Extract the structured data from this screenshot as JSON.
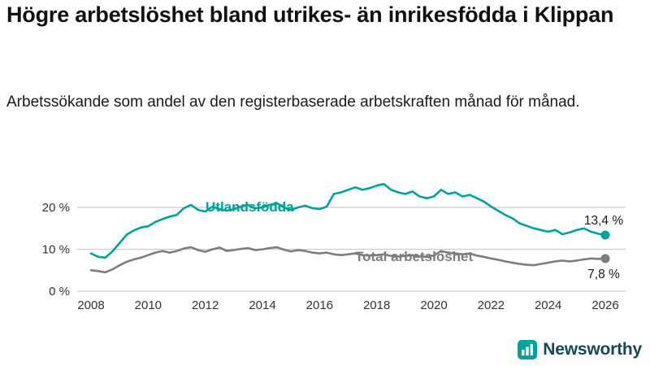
{
  "header": {
    "title": "Högre arbetslöshet bland utrikes- än inrikesfödda i Klippan",
    "subtitle": "Arbetssökande som andel av den registerbaserade arbetskraften månad för månad."
  },
  "chart_data": {
    "type": "line",
    "title": "",
    "xlabel": "",
    "ylabel": "",
    "grid": true,
    "legend_position": "inline",
    "xlim": [
      2007.5,
      2026.7
    ],
    "ylim": [
      0,
      28.5
    ],
    "ytick_values": [
      0,
      10,
      20
    ],
    "ytick_labels": [
      "0 %",
      "10 %",
      "20 %"
    ],
    "xtick_values": [
      2008,
      2010,
      2012,
      2014,
      2016,
      2018,
      2020,
      2022,
      2024,
      2026
    ],
    "xtick_labels": [
      "2008",
      "2010",
      "2012",
      "2014",
      "2016",
      "2018",
      "2020",
      "2022",
      "2024",
      "2026"
    ],
    "x": [
      2008,
      2008.25,
      2008.5,
      2008.75,
      2009,
      2009.25,
      2009.5,
      2009.75,
      2010,
      2010.25,
      2010.5,
      2010.75,
      2011,
      2011.25,
      2011.5,
      2011.75,
      2012,
      2012.25,
      2012.5,
      2012.75,
      2013,
      2013.25,
      2013.5,
      2013.75,
      2014,
      2014.25,
      2014.5,
      2014.75,
      2015,
      2015.25,
      2015.5,
      2015.75,
      2016,
      2016.25,
      2016.5,
      2016.75,
      2017,
      2017.25,
      2017.5,
      2017.75,
      2018,
      2018.25,
      2018.5,
      2018.75,
      2019,
      2019.25,
      2019.5,
      2019.75,
      2020,
      2020.25,
      2020.5,
      2020.75,
      2021,
      2021.25,
      2021.5,
      2021.75,
      2022,
      2022.25,
      2022.5,
      2022.75,
      2023,
      2023.25,
      2023.5,
      2023.75,
      2024,
      2024.25,
      2024.5,
      2024.75,
      2025,
      2025.25,
      2025.5,
      2025.75,
      2026
    ],
    "series": [
      {
        "name": "Utlandsfödda",
        "color": "#00a39b",
        "end_label": "13,4 %",
        "values": [
          9.0,
          8.2,
          8.0,
          9.5,
          11.5,
          13.5,
          14.5,
          15.2,
          15.5,
          16.5,
          17.2,
          17.8,
          18.2,
          19.8,
          20.6,
          19.4,
          19.0,
          20.2,
          19.6,
          19.2,
          19.6,
          20.2,
          20.6,
          19.8,
          20.0,
          20.6,
          21.0,
          20.0,
          19.4,
          20.0,
          20.4,
          19.8,
          19.6,
          20.2,
          23.2,
          23.6,
          24.2,
          24.8,
          24.2,
          24.6,
          25.2,
          25.6,
          24.2,
          23.6,
          23.2,
          23.8,
          22.6,
          22.2,
          22.6,
          24.2,
          23.2,
          23.6,
          22.6,
          23.0,
          22.2,
          21.4,
          20.2,
          19.2,
          18.2,
          17.4,
          16.2,
          15.6,
          15.0,
          14.6,
          14.2,
          14.6,
          13.6,
          14.0,
          14.6,
          15.0,
          14.2,
          13.7,
          13.4
        ]
      },
      {
        "name": "Total arbetslöshet",
        "color": "#7d7d7d",
        "end_label": "7,8 %",
        "values": [
          5.0,
          4.8,
          4.5,
          5.2,
          6.2,
          7.0,
          7.6,
          8.0,
          8.6,
          9.2,
          9.6,
          9.2,
          9.6,
          10.2,
          10.5,
          9.8,
          9.4,
          10.0,
          10.4,
          9.6,
          9.8,
          10.1,
          10.3,
          9.8,
          10.0,
          10.3,
          10.5,
          9.9,
          9.5,
          9.8,
          9.6,
          9.2,
          9.0,
          9.2,
          8.8,
          8.6,
          8.8,
          9.0,
          8.6,
          8.5,
          8.6,
          8.8,
          8.4,
          8.3,
          8.4,
          8.6,
          8.3,
          8.2,
          8.5,
          9.6,
          9.2,
          9.0,
          8.8,
          9.0,
          8.5,
          8.2,
          7.8,
          7.5,
          7.1,
          6.8,
          6.5,
          6.3,
          6.2,
          6.5,
          6.8,
          7.1,
          7.3,
          7.1,
          7.3,
          7.6,
          7.8,
          7.7,
          7.8
        ]
      }
    ],
    "colors": {
      "grid": "#cccccc",
      "tick_text": "#333333",
      "value_label": "#1a1a1a"
    }
  },
  "footer": {
    "brand": "Newsworthy",
    "brand_color": "#00a39b"
  }
}
